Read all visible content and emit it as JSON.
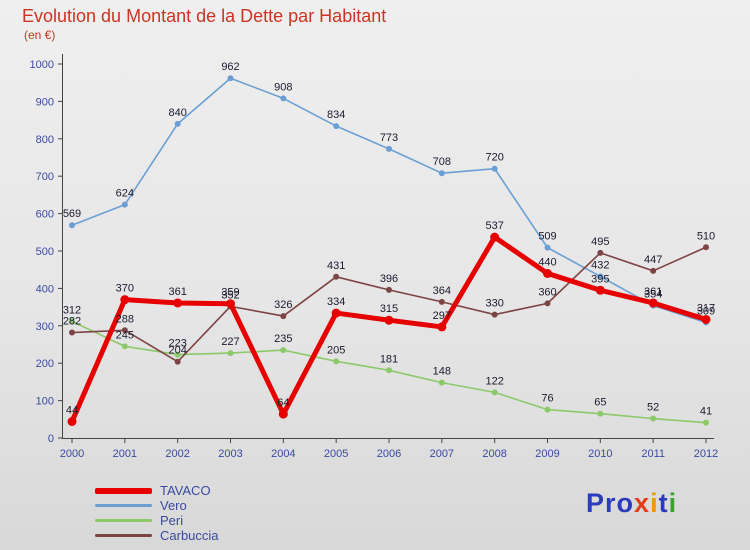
{
  "title": "Evolution du Montant de la Dette par Habitant",
  "subtitle": "(en €)",
  "chart_data": {
    "type": "line",
    "x": [
      2000,
      2001,
      2002,
      2003,
      2004,
      2005,
      2006,
      2007,
      2008,
      2009,
      2010,
      2011,
      2012
    ],
    "series": [
      {
        "name": "TAVACO",
        "color": "#e60000",
        "thick": true,
        "values": [
          44,
          370,
          361,
          359,
          64,
          334,
          315,
          297,
          537,
          440,
          395,
          361,
          317
        ]
      },
      {
        "name": "Vero",
        "color": "#6b9fd3",
        "thick": false,
        "values": [
          569,
          624,
          840,
          962,
          908,
          834,
          773,
          708,
          720,
          509,
          432,
          354,
          309
        ]
      },
      {
        "name": "Peri",
        "color": "#8cc96a",
        "thick": false,
        "values": [
          312,
          245,
          223,
          227,
          235,
          205,
          181,
          148,
          122,
          76,
          65,
          52,
          41
        ]
      },
      {
        "name": "Carbuccia",
        "color": "#7d4444",
        "thick": false,
        "values": [
          282,
          288,
          204,
          352,
          326,
          431,
          396,
          364,
          330,
          360,
          495,
          447,
          510
        ]
      }
    ],
    "ylim": [
      0,
      1000
    ],
    "ytick_step": 100,
    "grid": false,
    "legend_position": "bottom-left",
    "colors": {
      "title": "#cc3322",
      "axis_labels": "#3a4aa0",
      "value_labels": "#1a1a2e"
    }
  },
  "legend": {
    "items": [
      "TAVACO",
      "Vero",
      "Peri",
      "Carbuccia"
    ]
  },
  "logo": {
    "text": "Proxiti",
    "letters": [
      {
        "ch": "P",
        "color": "#2b3bbd"
      },
      {
        "ch": "r",
        "color": "#2b3bbd"
      },
      {
        "ch": "o",
        "color": "#2b3bbd"
      },
      {
        "ch": "x",
        "color": "#e63d17"
      },
      {
        "ch": "i",
        "color": "#e89a0c"
      },
      {
        "ch": "t",
        "color": "#2b3bbd"
      },
      {
        "ch": "i",
        "color": "#3aa32f"
      }
    ]
  }
}
